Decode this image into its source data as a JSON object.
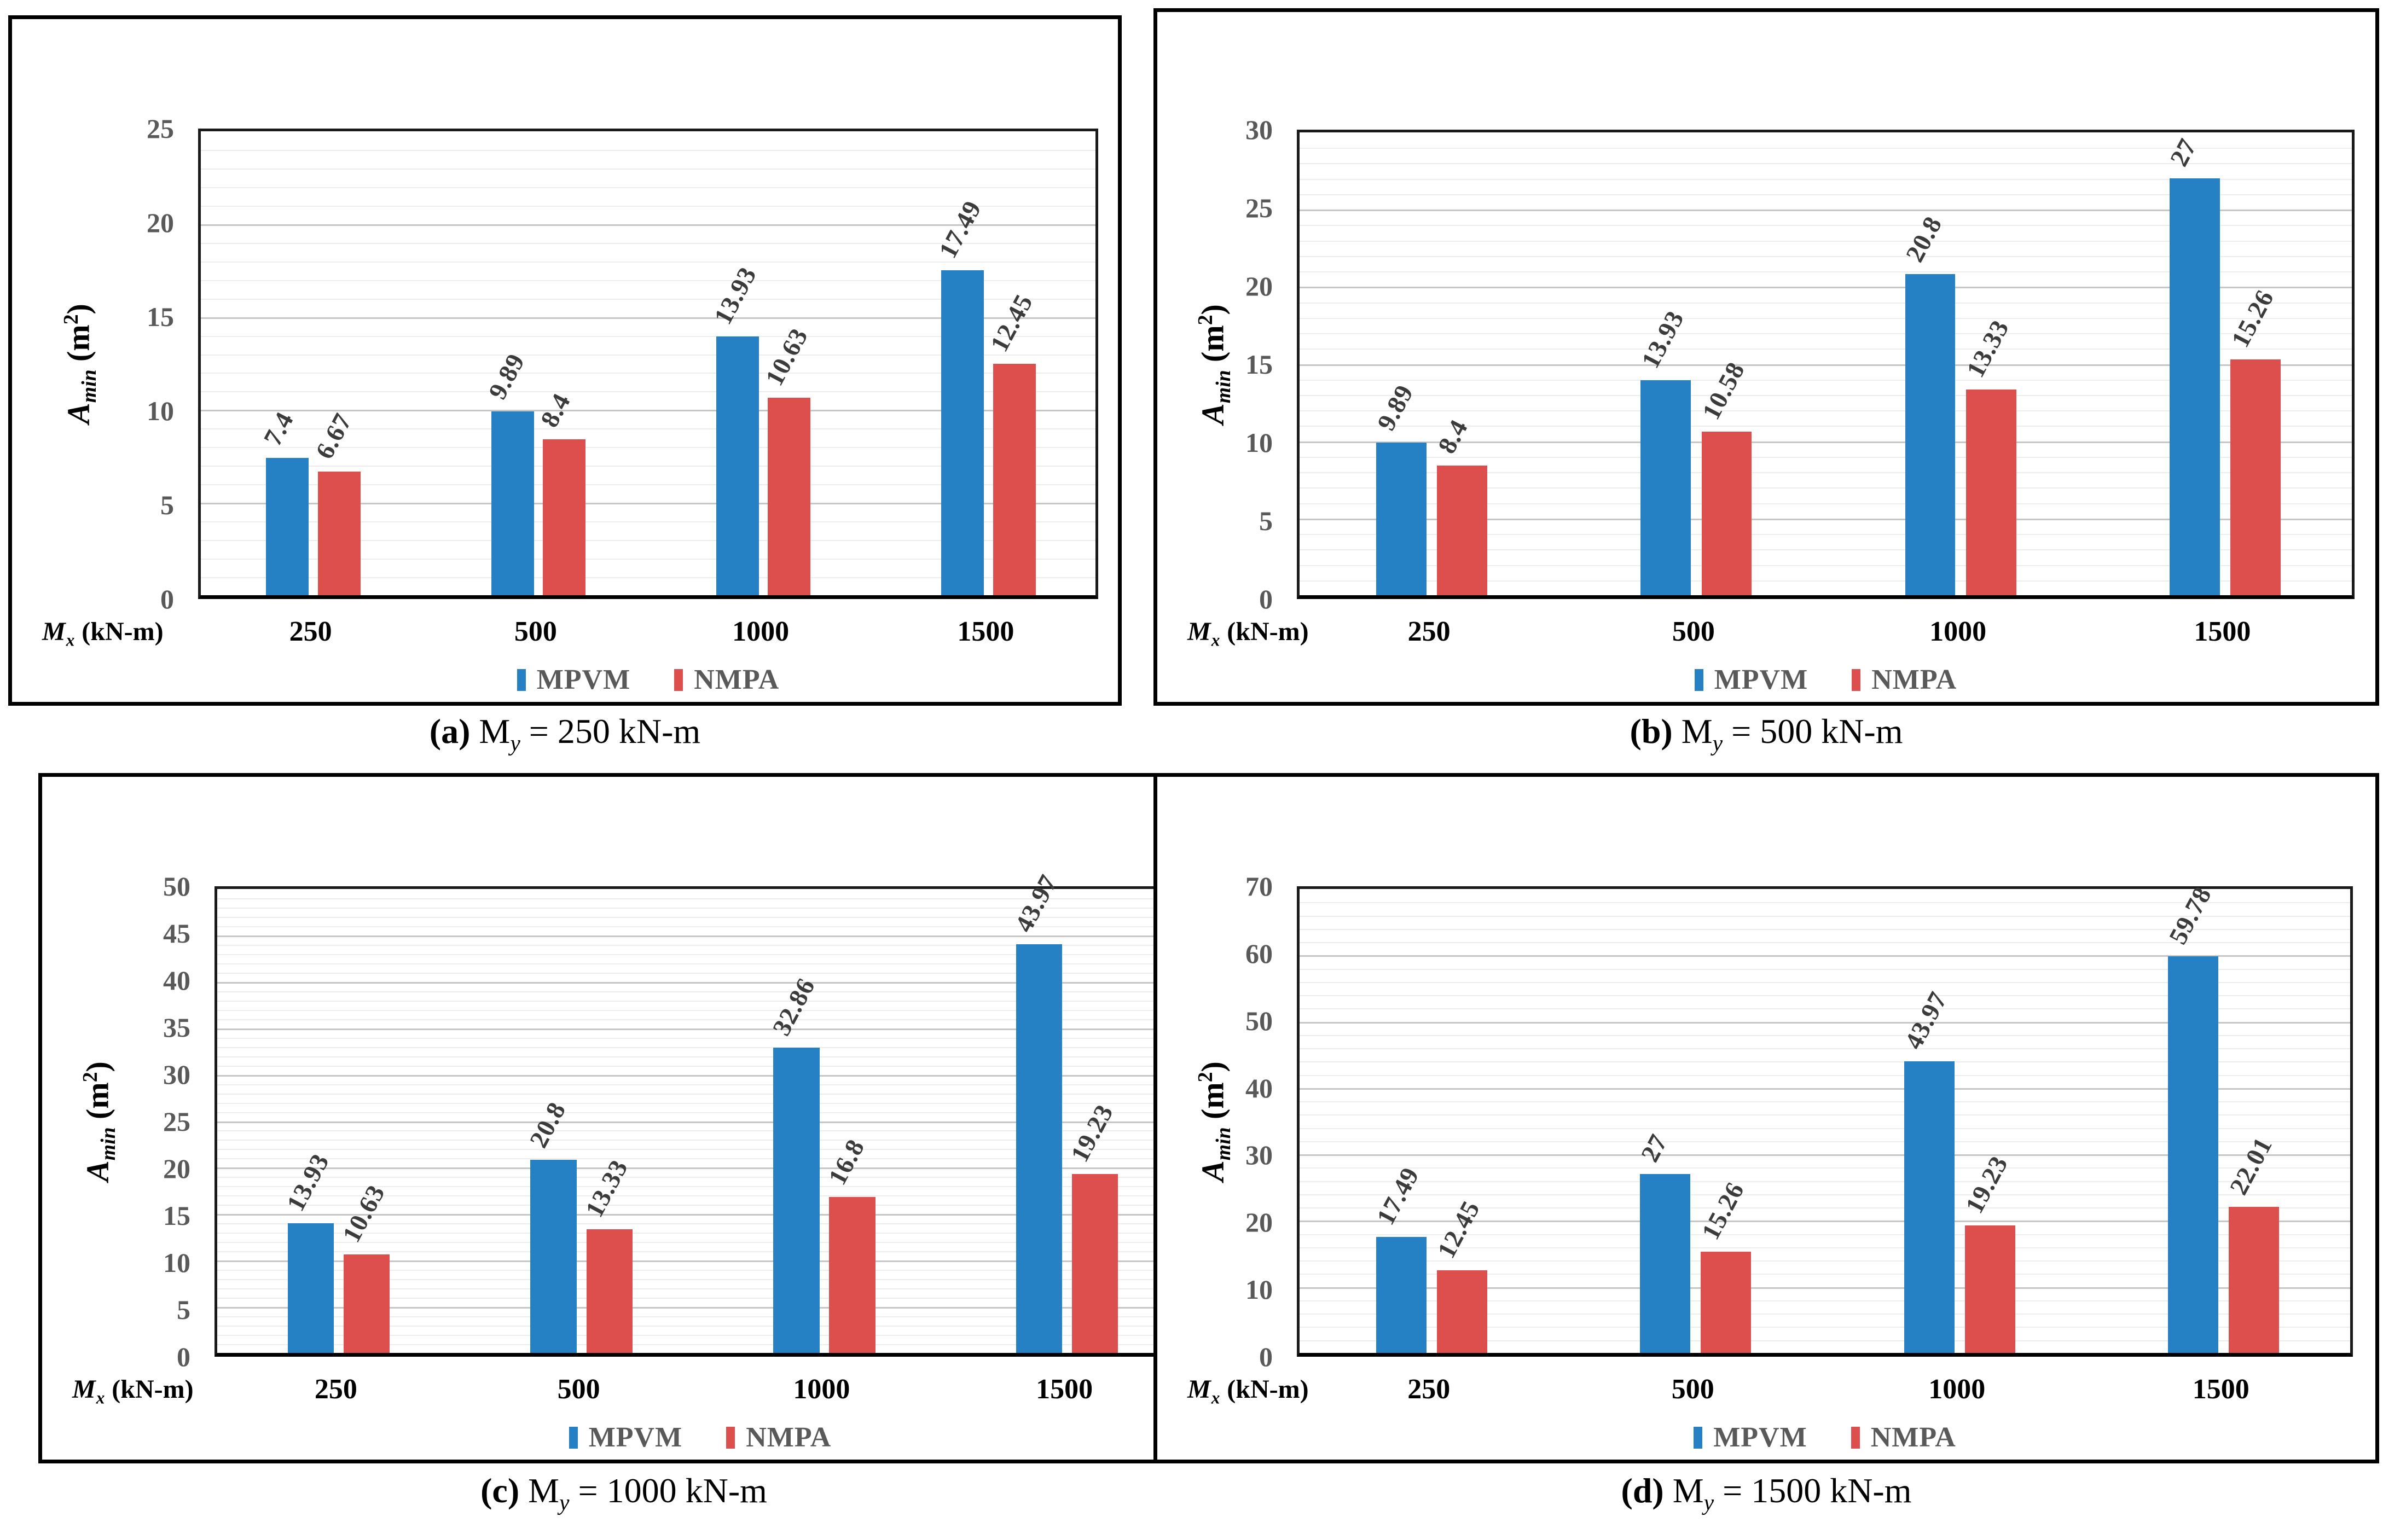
{
  "legend": {
    "series1": "MPVM",
    "series2": "NMPA"
  },
  "colors": {
    "mpvm": "#2580C4",
    "nmpa": "#DC4F4C",
    "tick_text": "#595959",
    "value_text": "#3B3B3B"
  },
  "chart_data": [
    {
      "type": "bar",
      "title": "(a) My = 250 kN-m",
      "caption": {
        "tag": "(a)",
        "m": "M",
        "sub": "y",
        "rest": " = 250 kN-m"
      },
      "categories": [
        "250",
        "500",
        "1000",
        "1500"
      ],
      "series": [
        {
          "name": "MPVM",
          "color": "#2580C4",
          "values": [
            7.4,
            9.89,
            13.93,
            17.49
          ]
        },
        {
          "name": "NMPA",
          "color": "#DC4F4C",
          "values": [
            6.67,
            8.4,
            10.63,
            12.45
          ]
        }
      ],
      "xlabel": {
        "m": "M",
        "sub": "x",
        "unit": " (kN-m)"
      },
      "ylabel": {
        "a": "A",
        "sub": "min",
        "unit_open": " (m",
        "sup": "2",
        "unit_close": ")"
      },
      "ylim": [
        0,
        25
      ],
      "major_step": 5,
      "minor_step": 1,
      "grid": true,
      "legend_position": "bottom"
    },
    {
      "type": "bar",
      "title": "(b) My = 500 kN-m",
      "caption": {
        "tag": "(b)",
        "m": "M",
        "sub": "y",
        "rest": " = 500 kN-m"
      },
      "categories": [
        "250",
        "500",
        "1000",
        "1500"
      ],
      "series": [
        {
          "name": "MPVM",
          "color": "#2580C4",
          "values": [
            9.89,
            13.93,
            20.8,
            27
          ]
        },
        {
          "name": "NMPA",
          "color": "#DC4F4C",
          "values": [
            8.4,
            10.58,
            13.33,
            15.26
          ]
        }
      ],
      "xlabel": {
        "m": "M",
        "sub": "x",
        "unit": " (kN-m)"
      },
      "ylabel": {
        "a": "A",
        "sub": "min",
        "unit_open": " (m",
        "sup": "2",
        "unit_close": ")"
      },
      "ylim": [
        0,
        30
      ],
      "major_step": 5,
      "minor_step": 1,
      "grid": true,
      "legend_position": "bottom"
    },
    {
      "type": "bar",
      "title": "(c) My = 1000 kN-m",
      "caption": {
        "tag": "(c)",
        "m": "M",
        "sub": "y",
        "rest": " = 1000 kN-m"
      },
      "categories": [
        "250",
        "500",
        "1000",
        "1500"
      ],
      "series": [
        {
          "name": "MPVM",
          "color": "#2580C4",
          "values": [
            13.93,
            20.8,
            32.86,
            43.97
          ]
        },
        {
          "name": "NMPA",
          "color": "#DC4F4C",
          "values": [
            10.63,
            13.33,
            16.8,
            19.23
          ]
        }
      ],
      "xlabel": {
        "m": "M",
        "sub": "x",
        "unit": " (kN-m)"
      },
      "ylabel": {
        "a": "A",
        "sub": "min",
        "unit_open": " (m",
        "sup": "2",
        "unit_close": ")"
      },
      "ylim": [
        0,
        50
      ],
      "major_step": 5,
      "minor_step": 1,
      "grid": true,
      "legend_position": "bottom"
    },
    {
      "type": "bar",
      "title": "(d) My = 1500 kN-m",
      "caption": {
        "tag": "(d)",
        "m": "M",
        "sub": "y",
        "rest": " = 1500 kN-m"
      },
      "categories": [
        "250",
        "500",
        "1000",
        "1500"
      ],
      "series": [
        {
          "name": "MPVM",
          "color": "#2580C4",
          "values": [
            17.49,
            27,
            43.97,
            59.78
          ]
        },
        {
          "name": "NMPA",
          "color": "#DC4F4C",
          "values": [
            12.45,
            15.26,
            19.23,
            22.01
          ]
        }
      ],
      "xlabel": {
        "m": "M",
        "sub": "x",
        "unit": " (kN-m)"
      },
      "ylabel": {
        "a": "A",
        "sub": "min",
        "unit_open": " (m",
        "sup": "2",
        "unit_close": ")"
      },
      "ylim": [
        0,
        70
      ],
      "major_step": 10,
      "minor_step": 2,
      "grid": true,
      "legend_position": "bottom"
    }
  ]
}
